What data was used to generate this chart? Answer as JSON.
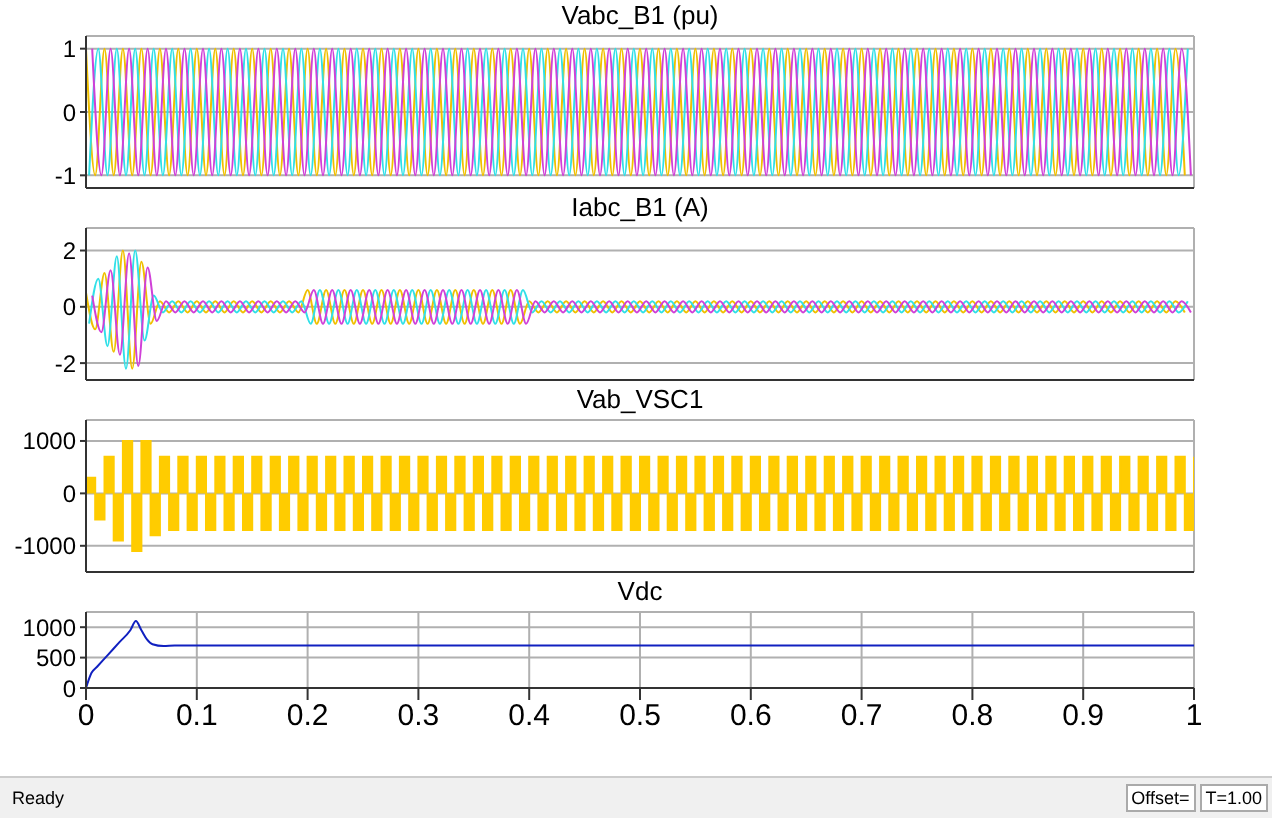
{
  "chart_data": [
    {
      "type": "line",
      "title": "Vabc_B1 (pu)",
      "xlim": [
        0,
        1
      ],
      "xticks": [
        0,
        0.1,
        0.2,
        0.3,
        0.4,
        0.5,
        0.6,
        0.7,
        0.8,
        0.9,
        1
      ],
      "ylim": [
        -1.2,
        1.2
      ],
      "yticks": [
        -1,
        0,
        1
      ],
      "grid": true,
      "tick_labels": "y",
      "series": [
        {
          "color": "#f0c000",
          "x": [
            0,
            0.0083,
            0.0167,
            0.025,
            0.0333,
            0.0417,
            0.05,
            0.0583,
            0.0667,
            0.075,
            0.0833,
            0.0917,
            0.1,
            0.1083,
            0.1167,
            0.125,
            0.1333,
            0.1417,
            0.15,
            0.1583,
            0.1667,
            0.175,
            0.1833,
            0.1917,
            0.2,
            0.2083,
            0.2167,
            0.225,
            0.2333,
            0.2417,
            0.25,
            0.2583,
            0.2667,
            0.275,
            0.2833,
            0.2917,
            0.3,
            0.3083,
            0.3167,
            0.325,
            0.3333,
            0.3417,
            0.35,
            0.3583,
            0.3667,
            0.375,
            0.3833,
            0.3917,
            0.4,
            0.4083,
            0.4167,
            0.425,
            0.4333,
            0.4417,
            0.45,
            0.4583,
            0.4667,
            0.475,
            0.4833,
            0.4917,
            0.5,
            0.5083,
            0.5167,
            0.525,
            0.5333,
            0.5417,
            0.55,
            0.5583,
            0.5667,
            0.575,
            0.5833,
            0.5917,
            0.6,
            0.6083,
            0.6167,
            0.625,
            0.6333,
            0.6417,
            0.65,
            0.6583,
            0.6667,
            0.675,
            0.6833,
            0.6917,
            0.7,
            0.7083,
            0.7167,
            0.725,
            0.7333,
            0.7417,
            0.75,
            0.7583,
            0.7667,
            0.775,
            0.7833,
            0.7917,
            0.8,
            0.8083,
            0.8167,
            0.825,
            0.8333,
            0.8417,
            0.85,
            0.8583,
            0.8667,
            0.875,
            0.8833,
            0.8917,
            0.9,
            0.9083,
            0.9167,
            0.925,
            0.9333,
            0.9417,
            0.95,
            0.9583,
            0.9667,
            0.975,
            0.9833,
            0.9917
          ],
          "values": [
            1,
            -1,
            1,
            -1,
            1,
            -1,
            1,
            -1,
            1,
            -1,
            1,
            -1,
            1,
            -1,
            1,
            -1,
            1,
            -1,
            1,
            -1,
            1,
            -1,
            1,
            -1,
            1,
            -1,
            1,
            -1,
            1,
            -1,
            1,
            -1,
            1,
            -1,
            1,
            -1,
            1,
            -1,
            1,
            -1,
            1,
            -1,
            1,
            -1,
            1,
            -1,
            1,
            -1,
            1,
            -1,
            1,
            -1,
            1,
            -1,
            1,
            -1,
            1,
            -1,
            1,
            -1,
            1,
            -1,
            1,
            -1,
            1,
            -1,
            1,
            -1,
            1,
            -1,
            1,
            -1,
            1,
            -1,
            1,
            -1,
            1,
            -1,
            1,
            -1,
            1,
            -1,
            1,
            -1,
            1,
            -1,
            1,
            -1,
            1,
            -1,
            1,
            -1,
            1,
            -1,
            1,
            -1,
            1,
            -1,
            1,
            -1,
            1,
            -1,
            1,
            -1,
            1,
            -1,
            1,
            -1,
            1,
            -1,
            1,
            -1,
            1,
            -1,
            1,
            -1,
            1,
            -1,
            1,
            -1
          ]
        },
        {
          "color": "#30e0e8",
          "x": [
            0.0028,
            0.0111,
            0.0194,
            0.0278,
            0.0361,
            0.0444,
            0.0528,
            0.0611,
            0.0694,
            0.0778,
            0.0861,
            0.0944,
            0.1028,
            0.1111,
            0.1194,
            0.1278,
            0.1361,
            0.1444,
            0.1528,
            0.1611,
            0.1694,
            0.1778,
            0.1861,
            0.1944,
            0.2028,
            0.2111,
            0.2194,
            0.2278,
            0.2361,
            0.2444,
            0.2528,
            0.2611,
            0.2694,
            0.2778,
            0.2861,
            0.2944,
            0.3028,
            0.3111,
            0.3194,
            0.3278,
            0.3361,
            0.3444,
            0.3528,
            0.3611,
            0.3694,
            0.3778,
            0.3861,
            0.3944,
            0.4028,
            0.4111,
            0.4194,
            0.4278,
            0.4361,
            0.4444,
            0.4528,
            0.4611,
            0.4694,
            0.4778,
            0.4861,
            0.4944,
            0.5028,
            0.5111,
            0.5194,
            0.5278,
            0.5361,
            0.5444,
            0.5528,
            0.5611,
            0.5694,
            0.5778,
            0.5861,
            0.5944,
            0.6028,
            0.6111,
            0.6194,
            0.6278,
            0.6361,
            0.6444,
            0.6528,
            0.6611,
            0.6694,
            0.6778,
            0.6861,
            0.6944,
            0.7028,
            0.7111,
            0.7194,
            0.7278,
            0.7361,
            0.7444,
            0.7528,
            0.7611,
            0.7694,
            0.7778,
            0.7861,
            0.7944,
            0.8028,
            0.8111,
            0.8194,
            0.8278,
            0.8361,
            0.8444,
            0.8528,
            0.8611,
            0.8694,
            0.8778,
            0.8861,
            0.8944,
            0.9028,
            0.9111,
            0.9194,
            0.9278,
            0.9361,
            0.9444,
            0.9528,
            0.9611,
            0.9694,
            0.9778,
            0.9861,
            0.9944
          ],
          "values": [
            -1,
            1,
            -1,
            1,
            -1,
            1,
            -1,
            1,
            -1,
            1,
            -1,
            1,
            -1,
            1,
            -1,
            1,
            -1,
            1,
            -1,
            1,
            -1,
            1,
            -1,
            1,
            -1,
            1,
            -1,
            1,
            -1,
            1,
            -1,
            1,
            -1,
            1,
            -1,
            1,
            -1,
            1,
            -1,
            1,
            -1,
            1,
            -1,
            1,
            -1,
            1,
            -1,
            1,
            -1,
            1,
            -1,
            1,
            -1,
            1,
            -1,
            1,
            -1,
            1,
            -1,
            1,
            -1,
            1,
            -1,
            1,
            -1,
            1,
            -1,
            1,
            -1,
            1,
            -1,
            1,
            -1,
            1,
            -1,
            1,
            -1,
            1,
            -1,
            1,
            -1,
            1,
            -1,
            1,
            -1,
            1,
            -1,
            1,
            -1,
            1,
            -1,
            1,
            -1,
            1,
            -1,
            1,
            -1,
            1,
            -1,
            1,
            -1,
            1,
            -1,
            1,
            -1,
            1,
            -1,
            1,
            -1,
            1,
            -1,
            1,
            -1,
            1,
            -1,
            1,
            -1,
            1,
            -1,
            1
          ]
        },
        {
          "color": "#d040d8",
          "x": [
            0.0056,
            0.0139,
            0.0222,
            0.0306,
            0.0389,
            0.0472,
            0.0556,
            0.0639,
            0.0722,
            0.0806,
            0.0889,
            0.0972,
            0.1056,
            0.1139,
            0.1222,
            0.1306,
            0.1389,
            0.1472,
            0.1556,
            0.1639,
            0.1722,
            0.1806,
            0.1889,
            0.1972,
            0.2056,
            0.2139,
            0.2222,
            0.2306,
            0.2389,
            0.2472,
            0.2556,
            0.2639,
            0.2722,
            0.2806,
            0.2889,
            0.2972,
            0.3056,
            0.3139,
            0.3222,
            0.3306,
            0.3389,
            0.3472,
            0.3556,
            0.3639,
            0.3722,
            0.3806,
            0.3889,
            0.3972,
            0.4056,
            0.4139,
            0.4222,
            0.4306,
            0.4389,
            0.4472,
            0.4556,
            0.4639,
            0.4722,
            0.4806,
            0.4889,
            0.4972,
            0.5056,
            0.5139,
            0.5222,
            0.5306,
            0.5389,
            0.5472,
            0.5556,
            0.5639,
            0.5722,
            0.5806,
            0.5889,
            0.5972,
            0.6056,
            0.6139,
            0.6222,
            0.6306,
            0.6389,
            0.6472,
            0.6556,
            0.6639,
            0.6722,
            0.6806,
            0.6889,
            0.6972,
            0.7056,
            0.7139,
            0.7222,
            0.7306,
            0.7389,
            0.7472,
            0.7556,
            0.7639,
            0.7722,
            0.7806,
            0.7889,
            0.7972,
            0.8056,
            0.8139,
            0.8222,
            0.8306,
            0.8389,
            0.8472,
            0.8556,
            0.8639,
            0.8722,
            0.8806,
            0.8889,
            0.8972,
            0.9056,
            0.9139,
            0.9222,
            0.9306,
            0.9389,
            0.9472,
            0.9556,
            0.9639,
            0.9722,
            0.9806,
            0.9889,
            0.9972
          ],
          "values": [
            1,
            -1,
            1,
            -1,
            1,
            -1,
            1,
            -1,
            1,
            -1,
            1,
            -1,
            1,
            -1,
            1,
            -1,
            1,
            -1,
            1,
            -1,
            1,
            -1,
            1,
            -1,
            1,
            -1,
            1,
            -1,
            1,
            -1,
            1,
            -1,
            1,
            -1,
            1,
            -1,
            1,
            -1,
            1,
            -1,
            1,
            -1,
            1,
            -1,
            1,
            -1,
            1,
            -1,
            1,
            -1,
            1,
            -1,
            1,
            -1,
            1,
            -1,
            1,
            -1,
            1,
            -1,
            1,
            -1,
            1,
            -1,
            1,
            -1,
            1,
            -1,
            1,
            -1,
            1,
            -1,
            1,
            -1,
            1,
            -1,
            1,
            -1,
            1,
            -1,
            1,
            -1,
            1,
            -1,
            1,
            -1,
            1,
            -1,
            1,
            -1,
            1,
            -1,
            1,
            -1,
            1,
            -1,
            1,
            -1,
            1,
            -1,
            1,
            -1,
            1,
            -1,
            1,
            -1,
            1,
            -1,
            1,
            -1,
            1,
            -1,
            1,
            -1,
            1,
            -1,
            1,
            -1,
            1,
            -1
          ]
        }
      ]
    },
    {
      "type": "line",
      "title": "Iabc_B1 (A)",
      "xlim": [
        0,
        1
      ],
      "xticks": [
        0,
        0.1,
        0.2,
        0.3,
        0.4,
        0.5,
        0.6,
        0.7,
        0.8,
        0.9,
        1
      ],
      "ylim": [
        -2.6,
        2.8
      ],
      "yticks": [
        -2,
        0,
        2
      ],
      "grid": true,
      "tick_labels": "y",
      "series": [
        {
          "color": "#f0c000",
          "x": [
            0,
            0.0083,
            0.0167,
            0.025,
            0.0333,
            0.0417,
            0.05,
            0.0583,
            0.0667,
            0.075,
            0.0833,
            0.0917,
            0.1,
            0.1083,
            0.1167,
            0.125,
            0.1333,
            0.1417,
            0.15,
            0.1583,
            0.1667,
            0.175,
            0.1833,
            0.1917,
            0.2,
            0.2083,
            0.2167,
            0.225,
            0.2333,
            0.2417,
            0.25,
            0.2583,
            0.2667,
            0.275,
            0.2833,
            0.2917,
            0.3,
            0.3083,
            0.3167,
            0.325,
            0.3333,
            0.3417,
            0.35,
            0.3583,
            0.3667,
            0.375,
            0.3833,
            0.3917,
            0.4,
            0.4083,
            0.4167,
            0.425,
            0.4333,
            0.4417,
            0.45,
            0.4583,
            0.4667,
            0.475,
            0.4833,
            0.4917,
            0.5,
            0.5083,
            0.5167,
            0.525,
            0.5333,
            0.5417,
            0.55,
            0.5583,
            0.5667,
            0.575,
            0.5833,
            0.5917,
            0.6,
            0.6083,
            0.6167,
            0.625,
            0.6333,
            0.6417,
            0.65,
            0.6583,
            0.6667,
            0.675,
            0.6833,
            0.6917,
            0.7,
            0.7083,
            0.7167,
            0.725,
            0.7333,
            0.7417,
            0.75,
            0.7583,
            0.7667,
            0.775,
            0.7833,
            0.7917,
            0.8,
            0.8083,
            0.8167,
            0.825,
            0.8333,
            0.8417,
            0.85,
            0.8583,
            0.8667,
            0.875,
            0.8833,
            0.8917,
            0.9,
            0.9083,
            0.9167,
            0.925,
            0.9333,
            0.9417,
            0.95,
            0.9583,
            0.9667,
            0.975,
            0.9833,
            0.9917
          ],
          "values": [
            0.5,
            -0.8,
            1.2,
            -1.6,
            2,
            -2.2,
            1.6,
            -0.6,
            0.2,
            -0.2,
            0.2,
            -0.2,
            0.2,
            -0.2,
            0.2,
            -0.2,
            0.2,
            -0.2,
            0.2,
            -0.2,
            0.2,
            -0.2,
            0.2,
            -0.2,
            0.6,
            -0.6,
            0.6,
            -0.6,
            0.6,
            -0.6,
            0.6,
            -0.6,
            0.6,
            -0.6,
            0.6,
            -0.6,
            0.6,
            -0.6,
            0.6,
            -0.6,
            0.6,
            -0.6,
            0.6,
            -0.6,
            0.6,
            -0.6,
            0.6,
            -0.6,
            0.2,
            -0.2,
            0.2,
            -0.2,
            0.2,
            -0.2,
            0.2,
            -0.2,
            0.2,
            -0.2,
            0.2,
            -0.2,
            0.2,
            -0.2,
            0.2,
            -0.2,
            0.2,
            -0.2,
            0.2,
            -0.2,
            0.2,
            -0.2,
            0.2,
            -0.2,
            0.2,
            -0.2,
            0.2,
            -0.2,
            0.2,
            -0.2,
            0.2,
            -0.2,
            0.2,
            -0.2,
            0.2,
            -0.2,
            0.2,
            -0.2,
            0.2,
            -0.2,
            0.2,
            -0.2,
            0.2,
            -0.2,
            0.2,
            -0.2,
            0.2,
            -0.2,
            0.2,
            -0.2,
            0.2,
            -0.2,
            0.2,
            -0.2,
            0.2,
            -0.2,
            0.2,
            -0.2,
            0.2,
            -0.2,
            0.2,
            -0.2,
            0.2,
            -0.2,
            0.2,
            -0.2,
            0.2,
            -0.2,
            0.2,
            -0.2,
            0.2,
            -0.2
          ]
        },
        {
          "color": "#30e0e8",
          "x": [
            0.0028,
            0.0111,
            0.0194,
            0.0278,
            0.0361,
            0.0444,
            0.0528,
            0.0611,
            0.0694,
            0.0778,
            0.0861,
            0.0944,
            0.1028,
            0.1111,
            0.1194,
            0.1278,
            0.1361,
            0.1444,
            0.1528,
            0.1611,
            0.1694,
            0.1778,
            0.1861,
            0.1944,
            0.2028,
            0.2111,
            0.2194,
            0.2278,
            0.2361,
            0.2444,
            0.2528,
            0.2611,
            0.2694,
            0.2778,
            0.2861,
            0.2944,
            0.3028,
            0.3111,
            0.3194,
            0.3278,
            0.3361,
            0.3444,
            0.3528,
            0.3611,
            0.3694,
            0.3778,
            0.3861,
            0.3944,
            0.4028,
            0.4111,
            0.4194,
            0.4278,
            0.4361,
            0.4444,
            0.4528,
            0.4611,
            0.4694,
            0.4778,
            0.4861,
            0.4944,
            0.5028,
            0.5111,
            0.5194,
            0.5278,
            0.5361,
            0.5444,
            0.5528,
            0.5611,
            0.5694,
            0.5778,
            0.5861,
            0.5944,
            0.6028,
            0.6111,
            0.6194,
            0.6278,
            0.6361,
            0.6444,
            0.6528,
            0.6611,
            0.6694,
            0.6778,
            0.6861,
            0.6944,
            0.7028,
            0.7111,
            0.7194,
            0.7278,
            0.7361,
            0.7444,
            0.7528,
            0.7611,
            0.7694,
            0.7778,
            0.7861,
            0.7944,
            0.8028,
            0.8111,
            0.8194,
            0.8278,
            0.8361,
            0.8444,
            0.8528,
            0.8611,
            0.8694,
            0.8778,
            0.8861,
            0.8944,
            0.9028,
            0.9111,
            0.9194,
            0.9278,
            0.9361,
            0.9444,
            0.9528,
            0.9611,
            0.9694,
            0.9778,
            0.9861,
            0.9944
          ],
          "values": [
            -0.6,
            1,
            -1.4,
            1.8,
            -2.2,
            2,
            -1.2,
            0.4,
            -0.2,
            0.2,
            -0.2,
            0.2,
            -0.2,
            0.2,
            -0.2,
            0.2,
            -0.2,
            0.2,
            -0.2,
            0.2,
            -0.2,
            0.2,
            -0.2,
            0.2,
            -0.6,
            0.6,
            -0.6,
            0.6,
            -0.6,
            0.6,
            -0.6,
            0.6,
            -0.6,
            0.6,
            -0.6,
            0.6,
            -0.6,
            0.6,
            -0.6,
            0.6,
            -0.6,
            0.6,
            -0.6,
            0.6,
            -0.6,
            0.6,
            -0.6,
            0.6,
            -0.2,
            0.2,
            -0.2,
            0.2,
            -0.2,
            0.2,
            -0.2,
            0.2,
            -0.2,
            0.2,
            -0.2,
            0.2,
            -0.2,
            0.2,
            -0.2,
            0.2,
            -0.2,
            0.2,
            -0.2,
            0.2,
            -0.2,
            0.2,
            -0.2,
            0.2,
            -0.2,
            0.2,
            -0.2,
            0.2,
            -0.2,
            0.2,
            -0.2,
            0.2,
            -0.2,
            0.2,
            -0.2,
            0.2,
            -0.2,
            0.2,
            -0.2,
            0.2,
            -0.2,
            0.2,
            -0.2,
            0.2,
            -0.2,
            0.2,
            -0.2,
            0.2,
            -0.2,
            0.2,
            -0.2,
            0.2,
            -0.2,
            0.2,
            -0.2,
            0.2,
            -0.2,
            0.2,
            -0.2,
            0.2,
            -0.2,
            0.2,
            -0.2,
            0.2,
            -0.2,
            0.2,
            -0.2,
            0.2,
            -0.2,
            0.2,
            -0.2,
            0.2
          ]
        },
        {
          "color": "#d040d8",
          "x": [
            0.0056,
            0.0139,
            0.0222,
            0.0306,
            0.0389,
            0.0472,
            0.0556,
            0.0639,
            0.0722,
            0.0806,
            0.0889,
            0.0972,
            0.1056,
            0.1139,
            0.1222,
            0.1306,
            0.1389,
            0.1472,
            0.1556,
            0.1639,
            0.1722,
            0.1806,
            0.1889,
            0.1972,
            0.2056,
            0.2139,
            0.2222,
            0.2306,
            0.2389,
            0.2472,
            0.2556,
            0.2639,
            0.2722,
            0.2806,
            0.2889,
            0.2972,
            0.3056,
            0.3139,
            0.3222,
            0.3306,
            0.3389,
            0.3472,
            0.3556,
            0.3639,
            0.3722,
            0.3806,
            0.3889,
            0.3972,
            0.4056,
            0.4139,
            0.4222,
            0.4306,
            0.4389,
            0.4472,
            0.4556,
            0.4639,
            0.4722,
            0.4806,
            0.4889,
            0.4972,
            0.5056,
            0.5139,
            0.5222,
            0.5306,
            0.5389,
            0.5472,
            0.5556,
            0.5639,
            0.5722,
            0.5806,
            0.5889,
            0.5972,
            0.6056,
            0.6139,
            0.6222,
            0.6306,
            0.6389,
            0.6472,
            0.6556,
            0.6639,
            0.6722,
            0.6806,
            0.6889,
            0.6972,
            0.7056,
            0.7139,
            0.7222,
            0.7306,
            0.7389,
            0.7472,
            0.7556,
            0.7639,
            0.7722,
            0.7806,
            0.7889,
            0.7972,
            0.8056,
            0.8139,
            0.8222,
            0.8306,
            0.8389,
            0.8472,
            0.8556,
            0.8639,
            0.8722,
            0.8806,
            0.8889,
            0.8972,
            0.9056,
            0.9139,
            0.9222,
            0.9306,
            0.9389,
            0.9472,
            0.9556,
            0.9639,
            0.9722,
            0.9806,
            0.9889,
            0.9972
          ],
          "values": [
            0.4,
            -0.9,
            1.3,
            -1.7,
            1.9,
            -2.1,
            1.4,
            -0.5,
            0.2,
            -0.2,
            0.2,
            -0.2,
            0.2,
            -0.2,
            0.2,
            -0.2,
            0.2,
            -0.2,
            0.2,
            -0.2,
            0.2,
            -0.2,
            0.2,
            -0.2,
            0.6,
            -0.6,
            0.6,
            -0.6,
            0.6,
            -0.6,
            0.6,
            -0.6,
            0.6,
            -0.6,
            0.6,
            -0.6,
            0.6,
            -0.6,
            0.6,
            -0.6,
            0.6,
            -0.6,
            0.6,
            -0.6,
            0.6,
            -0.6,
            0.6,
            -0.6,
            0.2,
            -0.2,
            0.2,
            -0.2,
            0.2,
            -0.2,
            0.2,
            -0.2,
            0.2,
            -0.2,
            0.2,
            -0.2,
            0.2,
            -0.2,
            0.2,
            -0.2,
            0.2,
            -0.2,
            0.2,
            -0.2,
            0.2,
            -0.2,
            0.2,
            -0.2,
            0.2,
            -0.2,
            0.2,
            -0.2,
            0.2,
            -0.2,
            0.2,
            -0.2,
            0.2,
            -0.2,
            0.2,
            -0.2,
            0.2,
            -0.2,
            0.2,
            -0.2,
            0.2,
            -0.2,
            0.2,
            -0.2,
            0.2,
            -0.2,
            0.2,
            -0.2,
            0.2,
            -0.2,
            0.2,
            -0.2,
            0.2,
            -0.2,
            0.2,
            -0.2,
            0.2,
            -0.2,
            0.2,
            -0.2,
            0.2,
            -0.2,
            0.2,
            -0.2,
            0.2,
            -0.2,
            0.2,
            -0.2,
            0.2,
            -0.2,
            0.2,
            -0.2
          ]
        }
      ]
    },
    {
      "type": "area",
      "title": "Vab_VSC1",
      "xlim": [
        0,
        1
      ],
      "xticks": [
        0,
        0.1,
        0.2,
        0.3,
        0.4,
        0.5,
        0.6,
        0.7,
        0.8,
        0.9,
        1
      ],
      "ylim": [
        -1500,
        1400
      ],
      "yticks": [
        -1000,
        0,
        1000
      ],
      "grid": true,
      "tick_labels": "y",
      "series": [
        {
          "color": "#ffcc00",
          "x": [
            0,
            0.0083,
            0.0167,
            0.025,
            0.0333,
            0.0417,
            0.05,
            0.0583,
            0.0667,
            0.075,
            0.0833,
            0.0917,
            0.1,
            0.1083,
            0.1167,
            0.125,
            0.1333,
            0.1417,
            0.15,
            0.1583,
            0.1667,
            0.175,
            0.1833,
            0.1917,
            0.2,
            0.2083,
            0.2167,
            0.225,
            0.2333,
            0.2417,
            0.25,
            0.2583,
            0.2667,
            0.275,
            0.2833,
            0.2917,
            0.3,
            0.3083,
            0.3167,
            0.325,
            0.3333,
            0.3417,
            0.35,
            0.3583,
            0.3667,
            0.375,
            0.3833,
            0.3917,
            0.4,
            0.4083,
            0.4167,
            0.425,
            0.4333,
            0.4417,
            0.45,
            0.4583,
            0.4667,
            0.475,
            0.4833,
            0.4917,
            0.5,
            0.5083,
            0.5167,
            0.525,
            0.5333,
            0.5417,
            0.55,
            0.5583,
            0.5667,
            0.575,
            0.5833,
            0.5917,
            0.6,
            0.6083,
            0.6167,
            0.625,
            0.6333,
            0.6417,
            0.65,
            0.6583,
            0.6667,
            0.675,
            0.6833,
            0.6917,
            0.7,
            0.7083,
            0.7167,
            0.725,
            0.7333,
            0.7417,
            0.75,
            0.7583,
            0.7667,
            0.775,
            0.7833,
            0.7917,
            0.8,
            0.8083,
            0.8167,
            0.825,
            0.8333,
            0.8417,
            0.85,
            0.8583,
            0.8667,
            0.875,
            0.8833,
            0.8917,
            0.9,
            0.9083,
            0.9167,
            0.925,
            0.9333,
            0.9417,
            0.95,
            0.9583,
            0.9667,
            0.975,
            0.9833,
            0.9917,
            1
          ],
          "values": [
            300,
            -500,
            700,
            -900,
            1000,
            -1100,
            1000,
            -800,
            700,
            -700,
            700,
            -700,
            700,
            -700,
            700,
            -700,
            700,
            -700,
            700,
            -700,
            700,
            -700,
            700,
            -700,
            700,
            -700,
            700,
            -700,
            700,
            -700,
            700,
            -700,
            700,
            -700,
            700,
            -700,
            700,
            -700,
            700,
            -700,
            700,
            -700,
            700,
            -700,
            700,
            -700,
            700,
            -700,
            700,
            -700,
            700,
            -700,
            700,
            -700,
            700,
            -700,
            700,
            -700,
            700,
            -700,
            700,
            -700,
            700,
            -700,
            700,
            -700,
            700,
            -700,
            700,
            -700,
            700,
            -700,
            700,
            -700,
            700,
            -700,
            700,
            -700,
            700,
            -700,
            700,
            -700,
            700,
            -700,
            700,
            -700,
            700,
            -700,
            700,
            -700,
            700,
            -700,
            700,
            -700,
            700,
            -700,
            700,
            -700,
            700,
            -700,
            700,
            -700,
            700,
            -700,
            700,
            -700,
            700,
            -700,
            700,
            -700,
            700,
            -700,
            700,
            -700,
            700,
            -700,
            700,
            -700,
            700,
            -700,
            700
          ]
        }
      ]
    },
    {
      "type": "line",
      "title": "Vdc",
      "xlim": [
        0,
        1
      ],
      "xticks": [
        0,
        0.1,
        0.2,
        0.3,
        0.4,
        0.5,
        0.6,
        0.7,
        0.8,
        0.9,
        1
      ],
      "ylim": [
        0,
        1250
      ],
      "yticks": [
        0,
        500,
        1000
      ],
      "grid": true,
      "series": [
        {
          "color": "#1020c0",
          "x": [
            0,
            0.005,
            0.01,
            0.02,
            0.03,
            0.04,
            0.045,
            0.05,
            0.055,
            0.06,
            0.07,
            0.08,
            0.1,
            0.2,
            0.3,
            0.4,
            0.5,
            0.6,
            0.7,
            0.8,
            0.9,
            1
          ],
          "values": [
            0,
            250,
            350,
            550,
            750,
            950,
            1100,
            950,
            800,
            720,
            690,
            700,
            700,
            700,
            700,
            700,
            700,
            700,
            700,
            700,
            700,
            700
          ]
        }
      ],
      "annotations": [
        "Ready",
        "Offset=",
        "T=1.00"
      ]
    }
  ]
}
